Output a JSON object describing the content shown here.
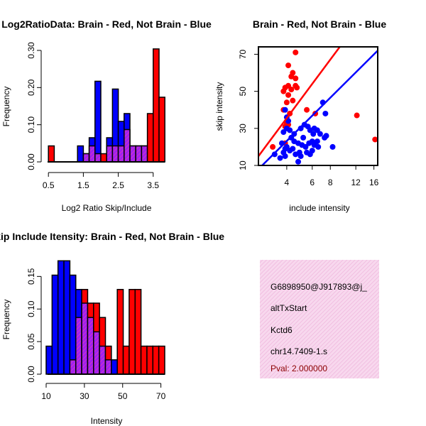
{
  "colors": {
    "red": "#ff0000",
    "blue": "#0000ff",
    "overlap": "#a020f0",
    "info_bg": "#f8d8ee",
    "info_hatch": "#eeb6dc",
    "pval": "#8b0000"
  },
  "chart_data": [
    {
      "type": "bar",
      "title": "Log2RatioData: Brain - Red, Not Brain - Blue",
      "xlabel": "Log2 Ratio Skip/Include",
      "ylabel": "Frequency",
      "xlim": [
        0.5,
        3.83
      ],
      "ylim": [
        0,
        0.3
      ],
      "xticks": [
        "0.5",
        "1.5",
        "2.5",
        "3.5"
      ],
      "xtick_values": [
        0.5,
        1.5,
        2.5,
        3.5
      ],
      "yticks": [
        "0.00",
        "0.10",
        "0.20",
        "0.30"
      ],
      "ytick_values": [
        0,
        0.1,
        0.2,
        0.3
      ],
      "bin_start": 0.5,
      "bin_width": 0.1667,
      "series": [
        {
          "name": "Not Brain",
          "color": "blue",
          "values": [
            0,
            0,
            0,
            0,
            0,
            0.043,
            0.022,
            0.065,
            0.217,
            0,
            0.065,
            0.196,
            0.109,
            0.13,
            0.043,
            0.043,
            0.043,
            0,
            0,
            0
          ]
        },
        {
          "name": "Brain",
          "color": "red",
          "values": [
            0.043,
            0,
            0,
            0,
            0,
            0,
            0.022,
            0.043,
            0.022,
            0.022,
            0.043,
            0.043,
            0.043,
            0.087,
            0.043,
            0.043,
            0.043,
            0.13,
            0.304,
            0.174
          ]
        }
      ]
    },
    {
      "type": "scatter",
      "title": "Brain - Red, Not Brain - Blue",
      "xlabel": "include intensity",
      "ylabel": "skip intensity",
      "xscale": "log",
      "xlim": [
        2.55,
        17.0
      ],
      "ylim": [
        10,
        74
      ],
      "xticks": [
        "4",
        "6",
        "8",
        "12",
        "16"
      ],
      "xtick_values": [
        4,
        6,
        8,
        12,
        16
      ],
      "yticks": [
        "10",
        "30",
        "50",
        "70"
      ],
      "ytick_values": [
        10,
        30,
        50,
        70
      ],
      "series": [
        {
          "name": "Brain",
          "color": "red",
          "points": [
            [
              4.6,
              71
            ],
            [
              4.1,
              64
            ],
            [
              4.4,
              60
            ],
            [
              4.6,
              57
            ],
            [
              4.3,
              58
            ],
            [
              4.6,
              53
            ],
            [
              4.7,
              52
            ],
            [
              4.1,
              53
            ],
            [
              3.9,
              52
            ],
            [
              4.3,
              51
            ],
            [
              3.8,
              50
            ],
            [
              4.1,
              48
            ],
            [
              4.0,
              44
            ],
            [
              4.4,
              45
            ],
            [
              3.8,
              40
            ],
            [
              4.2,
              38
            ],
            [
              5.5,
              40
            ],
            [
              6.3,
              38
            ],
            [
              4.1,
              32
            ],
            [
              3.9,
              31
            ],
            [
              4.0,
              33
            ],
            [
              3.9,
              22
            ],
            [
              12.2,
              37
            ],
            [
              16.3,
              24
            ],
            [
              3.2,
              20
            ]
          ]
        },
        {
          "name": "Not Brain",
          "color": "blue",
          "points": [
            [
              3.9,
              40
            ],
            [
              4.0,
              36
            ],
            [
              4.1,
              34
            ],
            [
              4.0,
              30
            ],
            [
              3.8,
              28
            ],
            [
              4.2,
              29
            ],
            [
              4.5,
              27
            ],
            [
              5.0,
              30
            ],
            [
              5.3,
              32
            ],
            [
              5.6,
              31
            ],
            [
              5.8,
              29
            ],
            [
              6.1,
              27
            ],
            [
              6.2,
              30
            ],
            [
              6.5,
              29
            ],
            [
              6.8,
              27
            ],
            [
              7.3,
              25
            ],
            [
              7.5,
              26
            ],
            [
              7.4,
              38
            ],
            [
              7.1,
              44
            ],
            [
              4.3,
              25
            ],
            [
              4.5,
              23
            ],
            [
              4.8,
              22
            ],
            [
              5.1,
              21
            ],
            [
              5.4,
              20
            ],
            [
              5.2,
              25
            ],
            [
              5.7,
              22
            ],
            [
              6.0,
              23
            ],
            [
              6.2,
              21
            ],
            [
              6.5,
              23
            ],
            [
              4.0,
              20
            ],
            [
              4.2,
              18
            ],
            [
              4.6,
              16
            ],
            [
              5.0,
              15
            ],
            [
              5.5,
              17
            ],
            [
              5.8,
              16
            ],
            [
              6.0,
              18
            ],
            [
              3.8,
              17
            ],
            [
              3.6,
              14
            ],
            [
              3.9,
              19
            ],
            [
              3.7,
              22
            ],
            [
              4.4,
              19
            ],
            [
              4.9,
              17
            ],
            [
              4.8,
              12
            ],
            [
              3.3,
              16
            ],
            [
              3.9,
              15
            ],
            [
              8.3,
              20
            ],
            [
              6.6,
              20
            ]
          ]
        }
      ],
      "lines": [
        {
          "name": "Brain fit",
          "color": "red",
          "from": [
            2.55,
            15
          ],
          "to": [
            9.3,
            74
          ]
        },
        {
          "name": "Not Brain fit",
          "color": "blue",
          "from": [
            2.55,
            8
          ],
          "to": [
            17.0,
            72
          ]
        }
      ]
    },
    {
      "type": "bar",
      "title": "Skip Include Itensity: Brain - Red, Not Brain - Blue",
      "xlabel": "Intensity",
      "ylabel": "Frequency",
      "xlim": [
        10,
        72
      ],
      "ylim": [
        0,
        0.17
      ],
      "xticks": [
        "10",
        "30",
        "50",
        "70"
      ],
      "xtick_values": [
        10,
        30,
        50,
        70
      ],
      "yticks": [
        "0.00",
        "0.05",
        "0.10",
        "0.15"
      ],
      "ytick_values": [
        0,
        0.05,
        0.1,
        0.15
      ],
      "bin_start": 10,
      "bin_width": 3.1,
      "series": [
        {
          "name": "Not Brain",
          "color": "blue",
          "values": [
            0.043,
            0.152,
            0.174,
            0.174,
            0.152,
            0.13,
            0.109,
            0.087,
            0.065,
            0.043,
            0.022,
            0.022,
            0,
            0,
            0,
            0,
            0,
            0,
            0,
            0
          ]
        },
        {
          "name": "Brain",
          "color": "red",
          "values": [
            0,
            0,
            0,
            0,
            0.022,
            0.087,
            0.13,
            0.109,
            0.109,
            0.087,
            0.043,
            0,
            0.13,
            0.043,
            0.13,
            0.13,
            0.043,
            0.043,
            0.043,
            0.043
          ]
        }
      ]
    }
  ],
  "info_panel": {
    "id_text": "G6898950@J917893@j_",
    "event_type": "altTxStart",
    "gene": "Kctd6",
    "location": "chr14.7409-1.s",
    "pval": "Pval: 2.000000"
  }
}
